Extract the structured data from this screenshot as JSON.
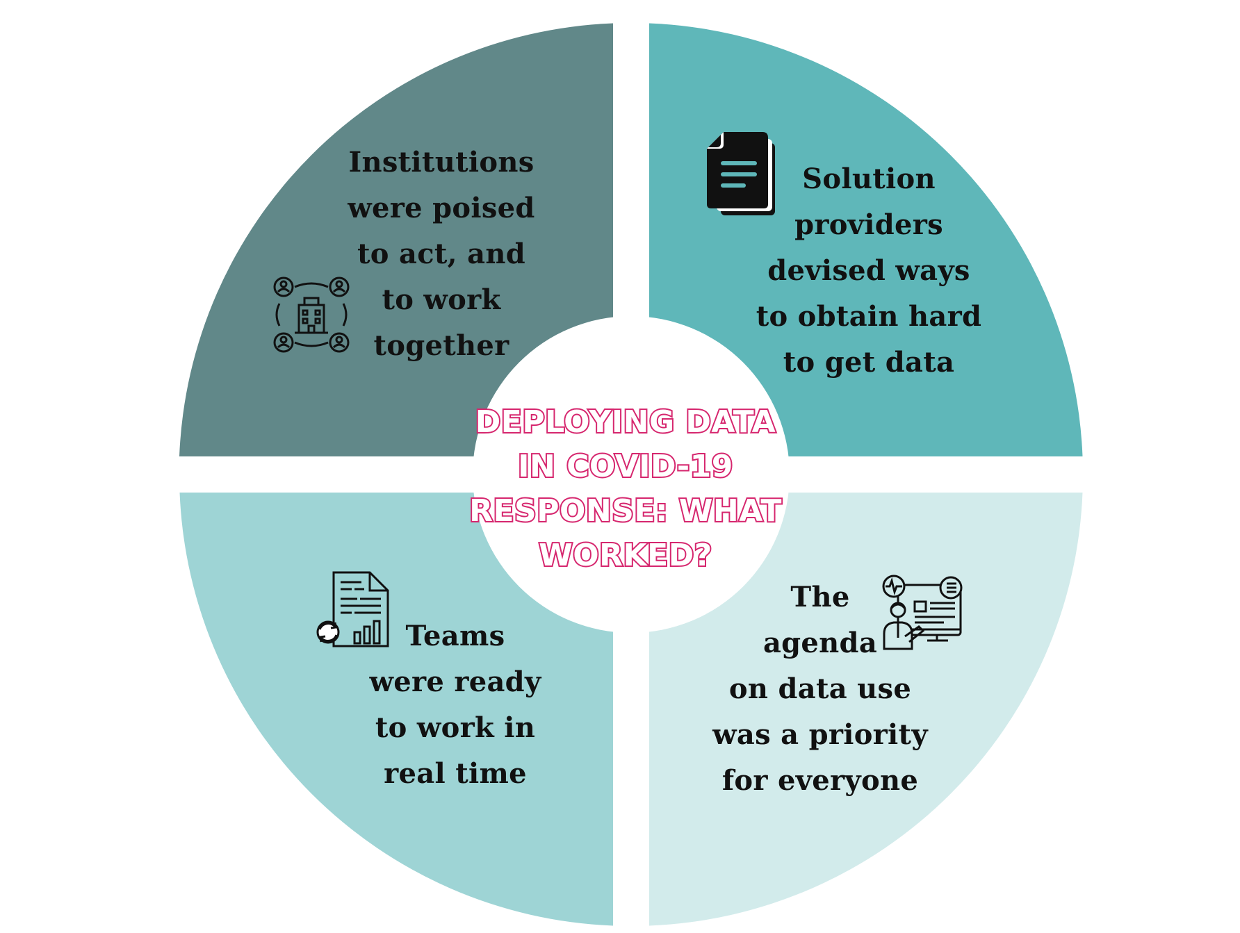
{
  "colors": {
    "q1": "#618889",
    "q2": "#5FB7B9",
    "q3": "#9ED4D5",
    "q4": "#D2EBEB",
    "title": "#D6266E",
    "text": "#111111"
  },
  "center": {
    "lines": [
      "Deploying Data",
      "in COVID-19",
      "Response:  What",
      "Worked?"
    ]
  },
  "quadrants": {
    "top_left": {
      "icon": "people-building-network-icon",
      "lines": [
        "Institutions",
        "were poised",
        "to act, and",
        "to work",
        "together"
      ]
    },
    "top_right": {
      "icon": "documents-icon",
      "lines": [
        "Solution",
        "providers",
        "devised ways",
        "to obtain hard",
        "to get data"
      ]
    },
    "bottom_left": {
      "icon": "report-refresh-chart-icon",
      "lines": [
        "Teams",
        "were ready",
        "to work in",
        "real time"
      ]
    },
    "bottom_right": {
      "icon": "analyst-dashboard-icon",
      "lines": [
        "The",
        "agenda",
        "on data use",
        "was a priority",
        "for everyone"
      ]
    }
  }
}
